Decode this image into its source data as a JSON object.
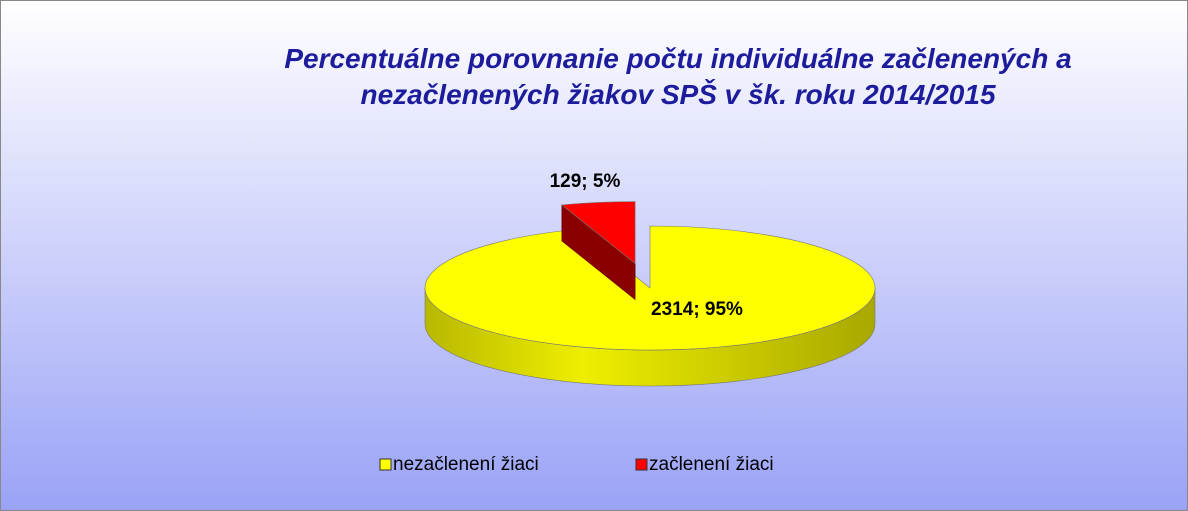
{
  "chart_data": {
    "type": "pie",
    "title": [
      "Percentuálne porovnanie počtu  individuálne začlenených a",
      "nezačlenených žiakov SPŠ v šk. roku 2014/2015"
    ],
    "categories": [
      "nezačlenení žiaci",
      "začlenení žiaci"
    ],
    "values": [
      2314,
      129
    ],
    "value_labels": [
      "2314; 95%",
      "129; 5%"
    ],
    "colors": [
      "#ffff00",
      "#ff0000"
    ],
    "legend": "bottom"
  }
}
